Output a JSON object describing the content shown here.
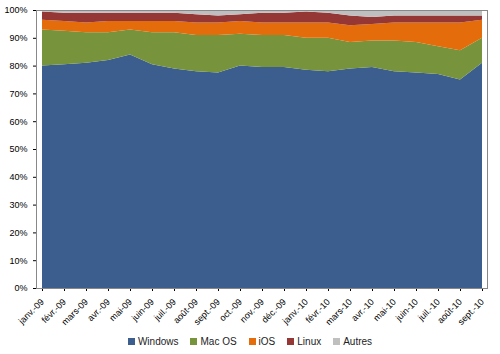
{
  "chart_data": {
    "type": "area",
    "stacked": true,
    "legend": "bottom",
    "grid": false,
    "categories": [
      "janv.-09",
      "févr.-09",
      "mars-09",
      "avr.-09",
      "mai-09",
      "juin-09",
      "juil.-09",
      "août-09",
      "sept.-09",
      "oct.-09",
      "nov.-09",
      "déc.-09",
      "janv.-10",
      "févr.-10",
      "mars-10",
      "avr.-10",
      "mai-10",
      "juin-10",
      "juil.-10",
      "août-10",
      "sept.-10"
    ],
    "series": [
      {
        "name": "Windows",
        "color": "#3b5e8f",
        "values": [
          80,
          80.5,
          81,
          82,
          84,
          80.5,
          79,
          78,
          77.5,
          80,
          79.5,
          79.5,
          78.5,
          78,
          79,
          79.5,
          78,
          77.5,
          77,
          75,
          81
        ]
      },
      {
        "name": "Mac OS",
        "color": "#77933c",
        "values": [
          13,
          12,
          11,
          10,
          9,
          11.5,
          13,
          13,
          13.5,
          11.5,
          11.5,
          11.5,
          11.5,
          12,
          9.5,
          9.5,
          11,
          11,
          10,
          10.5,
          9
        ]
      },
      {
        "name": "iOS",
        "color": "#e46c0a",
        "values": [
          3.5,
          3.5,
          3.5,
          4,
          3,
          4,
          4,
          4.5,
          4.5,
          4.5,
          4.5,
          4.5,
          5.5,
          5.5,
          6,
          6,
          6.5,
          7,
          8.5,
          10,
          6.5
        ]
      },
      {
        "name": "Linux",
        "color": "#953735",
        "values": [
          3,
          3,
          3.5,
          3,
          3,
          3,
          3,
          3,
          2.5,
          2.5,
          3.5,
          3.5,
          4,
          3.5,
          3.5,
          2.5,
          2.5,
          2.5,
          2.5,
          2.5,
          1.5
        ]
      },
      {
        "name": "Autres",
        "color": "#bfbfbf",
        "values": [
          0.5,
          1,
          1,
          1,
          1,
          1,
          1,
          1.5,
          2,
          1.5,
          1,
          1,
          0.5,
          1,
          2,
          2.5,
          2,
          2,
          2,
          2,
          2
        ]
      }
    ],
    "ylim": [
      0,
      100
    ],
    "yticks": [
      {
        "value": 0,
        "label": "0%"
      },
      {
        "value": 10,
        "label": "10%"
      },
      {
        "value": 20,
        "label": "20%"
      },
      {
        "value": 30,
        "label": "30%"
      },
      {
        "value": 40,
        "label": "40%"
      },
      {
        "value": 50,
        "label": "50%"
      },
      {
        "value": 60,
        "label": "60%"
      },
      {
        "value": 70,
        "label": "70%"
      },
      {
        "value": 80,
        "label": "80%"
      },
      {
        "value": 90,
        "label": "90%"
      },
      {
        "value": 100,
        "label": "100%"
      }
    ]
  }
}
